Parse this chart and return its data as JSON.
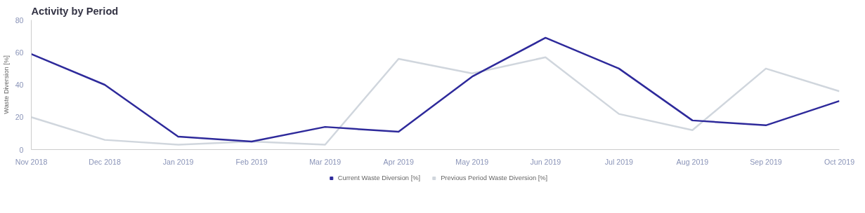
{
  "chart_data": {
    "type": "line",
    "title": "Activity by Period",
    "ylabel": "Waste Diversion [%]",
    "categories": [
      "Nov 2018",
      "Dec 2018",
      "Jan 2019",
      "Feb 2019",
      "Mar 2019",
      "Apr 2019",
      "May 2019",
      "Jun 2019",
      "Jul 2019",
      "Aug 2019",
      "Sep 2019",
      "Oct 2019"
    ],
    "series": [
      {
        "name": "Current Waste Diversion [%]",
        "color": "#2e2a9b",
        "values": [
          59,
          40,
          8,
          5,
          14,
          11,
          45,
          69,
          50,
          18,
          15,
          30
        ]
      },
      {
        "name": "Previous Period Waste Diversion [%]",
        "color": "#d0d6dd",
        "values": [
          20,
          6,
          3,
          5,
          3,
          56,
          47,
          57,
          22,
          12,
          50,
          36
        ]
      }
    ],
    "ylim": [
      0,
      80
    ],
    "yticks": [
      0,
      20,
      40,
      60,
      80
    ],
    "grid": false,
    "legend": "bottom",
    "marker": "none",
    "line_style": "solid"
  }
}
